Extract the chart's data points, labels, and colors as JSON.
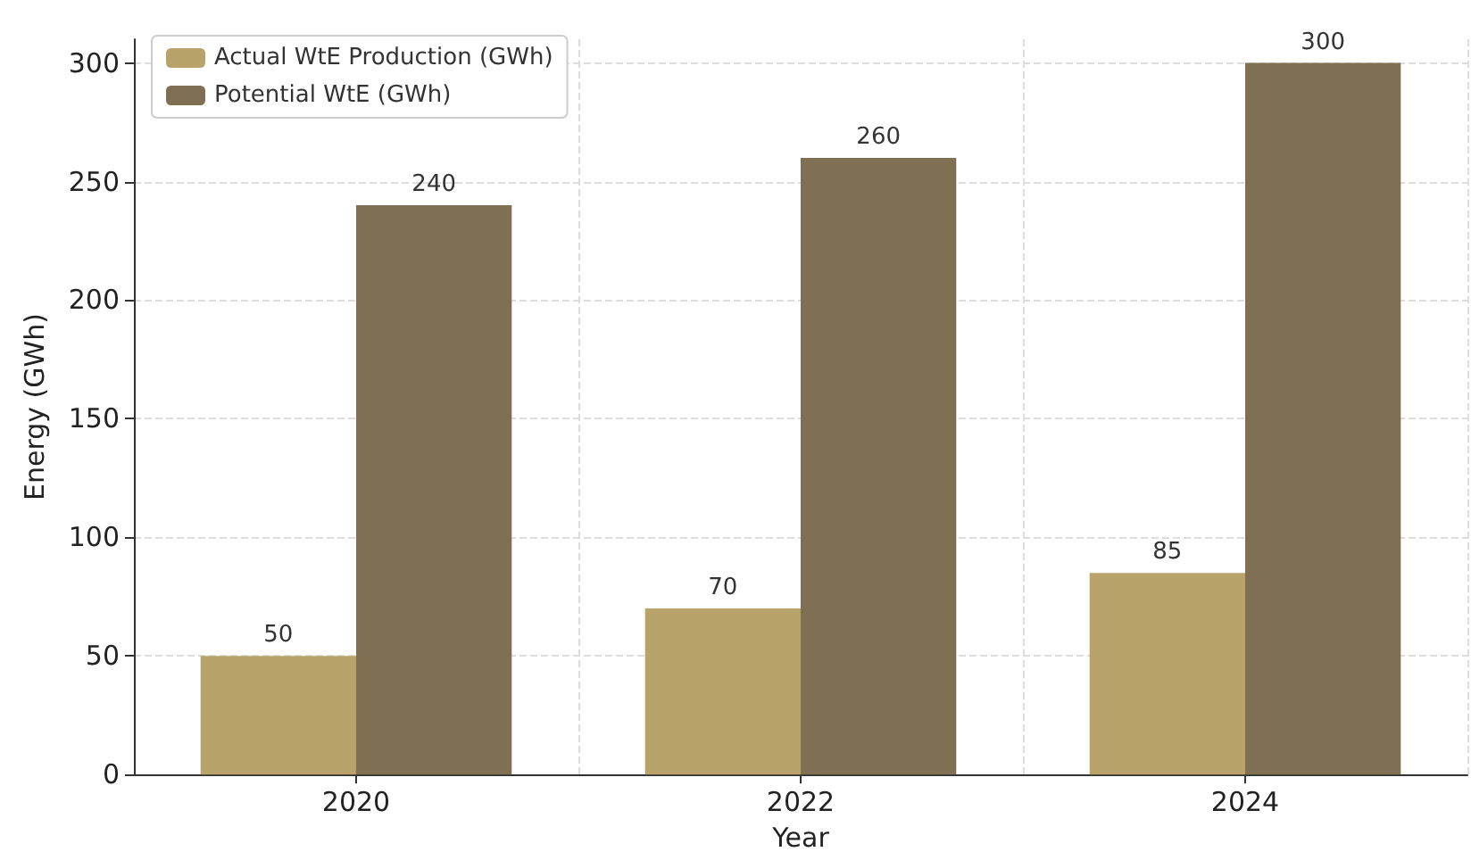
{
  "chart_data": {
    "type": "bar",
    "xlabel": "Year",
    "ylabel": "Energy (GWh)",
    "categories": [
      "2020",
      "2022",
      "2024"
    ],
    "series": [
      {
        "name": "Actual WtE Production (GWh)",
        "color": "#b8a46a",
        "values": [
          50,
          70,
          85
        ]
      },
      {
        "name": "Potential WtE (GWh)",
        "color": "#7f6f53",
        "values": [
          240,
          260,
          300
        ]
      }
    ],
    "ylim": [
      0,
      310
    ],
    "yticks": [
      0,
      50,
      100,
      150,
      200,
      250,
      300
    ],
    "grid": true,
    "legend": "top left",
    "data_labels": true
  }
}
